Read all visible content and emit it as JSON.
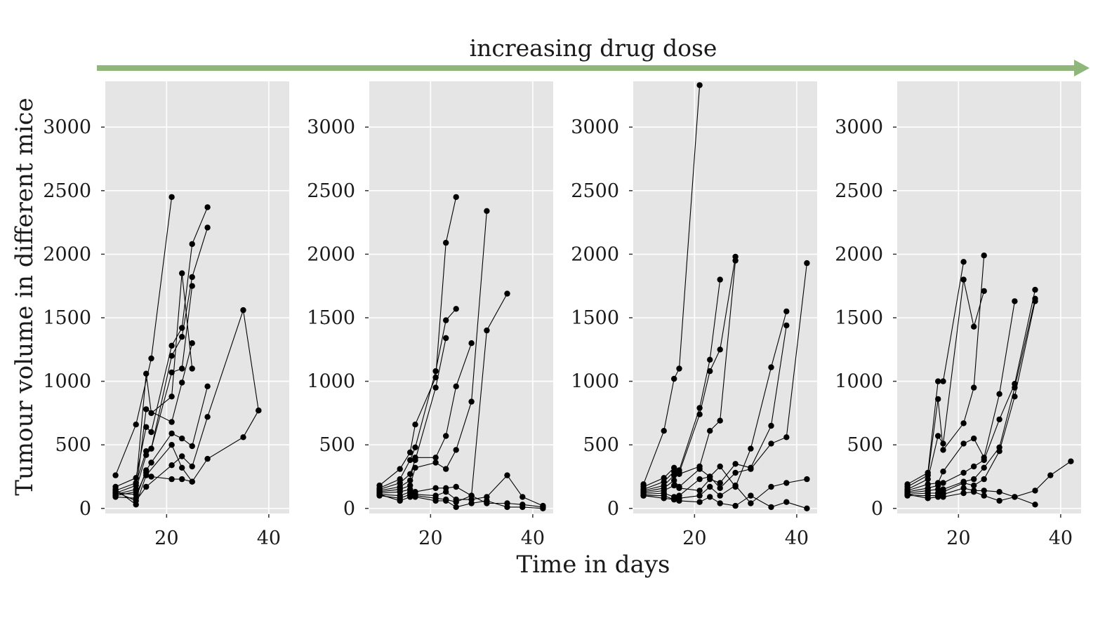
{
  "figure": {
    "annotation": "increasing drug dose",
    "xlabel": "Time in days",
    "ylabel": "Tumour volume in different mice",
    "colors": {
      "panel_bg": "#e5e5e5",
      "grid": "#ffffff",
      "line": "#000000",
      "arrow": "#8fb77b",
      "text": "#1a1a1a"
    }
  },
  "chart_data": [
    {
      "type": "line",
      "xlim": [
        8,
        44
      ],
      "ylim": [
        -40,
        3360
      ],
      "xticks": [
        20,
        40
      ],
      "yticks": [
        0,
        500,
        1000,
        1500,
        2000,
        2500,
        3000
      ],
      "grid": true,
      "series": [
        {
          "x": [
            10,
            14,
            17,
            21
          ],
          "y": [
            260,
            660,
            1180,
            2450
          ]
        },
        {
          "x": [
            10,
            14,
            16,
            17,
            21,
            23,
            25,
            28
          ],
          "y": [
            170,
            240,
            640,
            600,
            1280,
            1420,
            2080,
            2370
          ]
        },
        {
          "x": [
            10,
            14,
            16,
            17,
            21,
            23,
            25,
            28
          ],
          "y": [
            140,
            200,
            450,
            470,
            1200,
            1350,
            1820,
            2210
          ]
        },
        {
          "x": [
            10,
            14,
            16,
            17,
            21,
            23,
            25
          ],
          "y": [
            120,
            180,
            1060,
            750,
            880,
            1850,
            1100
          ]
        },
        {
          "x": [
            10,
            14,
            16,
            17,
            21,
            23,
            25
          ],
          "y": [
            110,
            150,
            420,
            470,
            1070,
            1100,
            1750
          ]
        },
        {
          "x": [
            10,
            14,
            16,
            21,
            23,
            25
          ],
          "y": [
            100,
            130,
            780,
            680,
            990,
            1300
          ]
        },
        {
          "x": [
            10,
            14,
            16,
            17,
            21,
            23,
            25,
            28
          ],
          "y": [
            90,
            80,
            300,
            360,
            590,
            550,
            490,
            960
          ]
        },
        {
          "x": [
            10,
            14,
            16,
            21,
            23,
            25,
            28,
            35,
            38
          ],
          "y": [
            130,
            60,
            170,
            340,
            410,
            330,
            720,
            1560,
            770
          ]
        },
        {
          "x": [
            10,
            14,
            16,
            21,
            23,
            25,
            28,
            35,
            38
          ],
          "y": [
            150,
            30,
            260,
            500,
            320,
            210,
            390,
            560,
            770
          ]
        },
        {
          "x": [
            10,
            14,
            16,
            17,
            21,
            23,
            25
          ],
          "y": [
            120,
            110,
            280,
            250,
            230,
            230,
            210
          ]
        }
      ]
    },
    {
      "type": "line",
      "xlim": [
        8,
        44
      ],
      "ylim": [
        -40,
        3360
      ],
      "xticks": [
        20,
        40
      ],
      "yticks": [
        0,
        500,
        1000,
        1500,
        2000,
        2500,
        3000
      ],
      "grid": true,
      "series": [
        {
          "x": [
            10,
            14,
            16,
            17,
            21,
            23,
            25
          ],
          "y": [
            180,
            310,
            440,
            660,
            1030,
            2090,
            2450
          ]
        },
        {
          "x": [
            10,
            14,
            16,
            17,
            21,
            23,
            25
          ],
          "y": [
            160,
            230,
            380,
            480,
            1080,
            1480,
            1570
          ]
        },
        {
          "x": [
            10,
            14,
            16,
            17,
            21,
            23
          ],
          "y": [
            150,
            200,
            270,
            380,
            950,
            1340
          ]
        },
        {
          "x": [
            10,
            14,
            16,
            17,
            21,
            23,
            25,
            28
          ],
          "y": [
            140,
            170,
            220,
            400,
            400,
            570,
            960,
            1300
          ]
        },
        {
          "x": [
            10,
            14,
            16,
            17,
            21,
            23,
            25,
            28,
            31
          ],
          "y": [
            130,
            150,
            180,
            320,
            360,
            310,
            460,
            840,
            2340
          ]
        },
        {
          "x": [
            10,
            14,
            16,
            17,
            21,
            23,
            25,
            28,
            31,
            35
          ],
          "y": [
            120,
            130,
            150,
            130,
            160,
            160,
            170,
            100,
            1400,
            1690
          ]
        },
        {
          "x": [
            10,
            14,
            16,
            17,
            21,
            23,
            25,
            28,
            31,
            35,
            38,
            42
          ],
          "y": [
            110,
            100,
            130,
            110,
            100,
            130,
            70,
            70,
            90,
            260,
            90,
            20
          ]
        },
        {
          "x": [
            10,
            14,
            16,
            17,
            21,
            23,
            25,
            28,
            31,
            35,
            38,
            42
          ],
          "y": [
            100,
            80,
            110,
            100,
            80,
            70,
            50,
            100,
            40,
            40,
            30,
            10
          ]
        },
        {
          "x": [
            10,
            14,
            16,
            17,
            21,
            23,
            25,
            28,
            31,
            35,
            38,
            42
          ],
          "y": [
            110,
            60,
            90,
            90,
            60,
            60,
            10,
            40,
            60,
            10,
            10,
            0
          ]
        }
      ]
    },
    {
      "type": "line",
      "xlim": [
        8,
        44
      ],
      "ylim": [
        -40,
        3360
      ],
      "xticks": [
        20,
        40
      ],
      "yticks": [
        0,
        500,
        1000,
        1500,
        2000,
        2500,
        3000
      ],
      "grid": true,
      "series": [
        {
          "x": [
            10,
            14,
            16,
            17,
            21
          ],
          "y": [
            190,
            610,
            1020,
            1100,
            3330
          ]
        },
        {
          "x": [
            10,
            14,
            16,
            17,
            21,
            23,
            25
          ],
          "y": [
            170,
            240,
            320,
            300,
            790,
            1170,
            1800
          ]
        },
        {
          "x": [
            10,
            14,
            16,
            17,
            21,
            23,
            25,
            28
          ],
          "y": [
            150,
            210,
            290,
            280,
            740,
            1080,
            1250,
            1980
          ]
        },
        {
          "x": [
            10,
            14,
            16,
            17,
            21,
            23,
            25,
            28
          ],
          "y": [
            140,
            180,
            260,
            270,
            330,
            610,
            690,
            1950
          ]
        },
        {
          "x": [
            10,
            14,
            16,
            17,
            21,
            23,
            25,
            28,
            31,
            35,
            38
          ],
          "y": [
            130,
            160,
            220,
            170,
            310,
            250,
            330,
            170,
            470,
            1110,
            1550
          ]
        },
        {
          "x": [
            10,
            14,
            16,
            17,
            21,
            23,
            25,
            28,
            31,
            35,
            38
          ],
          "y": [
            120,
            140,
            180,
            160,
            140,
            230,
            200,
            350,
            320,
            650,
            1440
          ]
        },
        {
          "x": [
            10,
            14,
            16,
            17,
            21,
            23,
            25,
            28,
            31,
            35,
            38,
            42
          ],
          "y": [
            110,
            120,
            90,
            100,
            230,
            250,
            160,
            280,
            310,
            510,
            560,
            1930
          ]
        },
        {
          "x": [
            10,
            14,
            16,
            17,
            21,
            23,
            25,
            28,
            31,
            35,
            38,
            42
          ],
          "y": [
            100,
            100,
            70,
            80,
            100,
            170,
            100,
            180,
            40,
            170,
            200,
            230
          ]
        },
        {
          "x": [
            10,
            14,
            16,
            17,
            21,
            23,
            25,
            28,
            31,
            35,
            38,
            42
          ],
          "y": [
            100,
            80,
            70,
            60,
            50,
            90,
            40,
            20,
            100,
            10,
            50,
            0
          ]
        }
      ]
    },
    {
      "type": "line",
      "xlim": [
        8,
        44
      ],
      "ylim": [
        -40,
        3360
      ],
      "xticks": [
        20,
        40
      ],
      "yticks": [
        0,
        500,
        1000,
        1500,
        2000,
        2500,
        3000
      ],
      "grid": true,
      "series": [
        {
          "x": [
            10,
            14,
            16,
            17,
            21
          ],
          "y": [
            190,
            280,
            1000,
            1000,
            1940
          ]
        },
        {
          "x": [
            10,
            14,
            16,
            17,
            21,
            23,
            25
          ],
          "y": [
            170,
            260,
            860,
            460,
            670,
            950,
            1990
          ]
        },
        {
          "x": [
            10,
            14,
            16,
            17,
            21,
            23,
            25
          ],
          "y": [
            150,
            230,
            570,
            510,
            1800,
            1430,
            1710
          ]
        },
        {
          "x": [
            10,
            14,
            16,
            17,
            21,
            23,
            25,
            28,
            31
          ],
          "y": [
            140,
            190,
            200,
            290,
            510,
            550,
            400,
            900,
            1630
          ]
        },
        {
          "x": [
            10,
            14,
            16,
            17,
            21,
            23,
            25,
            28,
            31,
            35
          ],
          "y": [
            130,
            160,
            180,
            200,
            280,
            330,
            380,
            700,
            980,
            1720
          ]
        },
        {
          "x": [
            10,
            14,
            16,
            17,
            21,
            23,
            25,
            28,
            31,
            35
          ],
          "y": [
            120,
            140,
            150,
            150,
            210,
            230,
            320,
            480,
            950,
            1650
          ]
        },
        {
          "x": [
            10,
            14,
            16,
            17,
            21,
            23,
            25,
            28,
            31,
            35
          ],
          "y": [
            110,
            120,
            120,
            130,
            200,
            180,
            230,
            450,
            880,
            1630
          ]
        },
        {
          "x": [
            10,
            14,
            16,
            17,
            21,
            23,
            25,
            28,
            31,
            35,
            38,
            42
          ],
          "y": [
            100,
            100,
            100,
            110,
            160,
            140,
            140,
            130,
            90,
            140,
            260,
            370
          ]
        },
        {
          "x": [
            10,
            14,
            16,
            17,
            21,
            23,
            25,
            28,
            31,
            35
          ],
          "y": [
            110,
            80,
            90,
            90,
            120,
            130,
            100,
            60,
            90,
            30
          ]
        }
      ]
    }
  ]
}
